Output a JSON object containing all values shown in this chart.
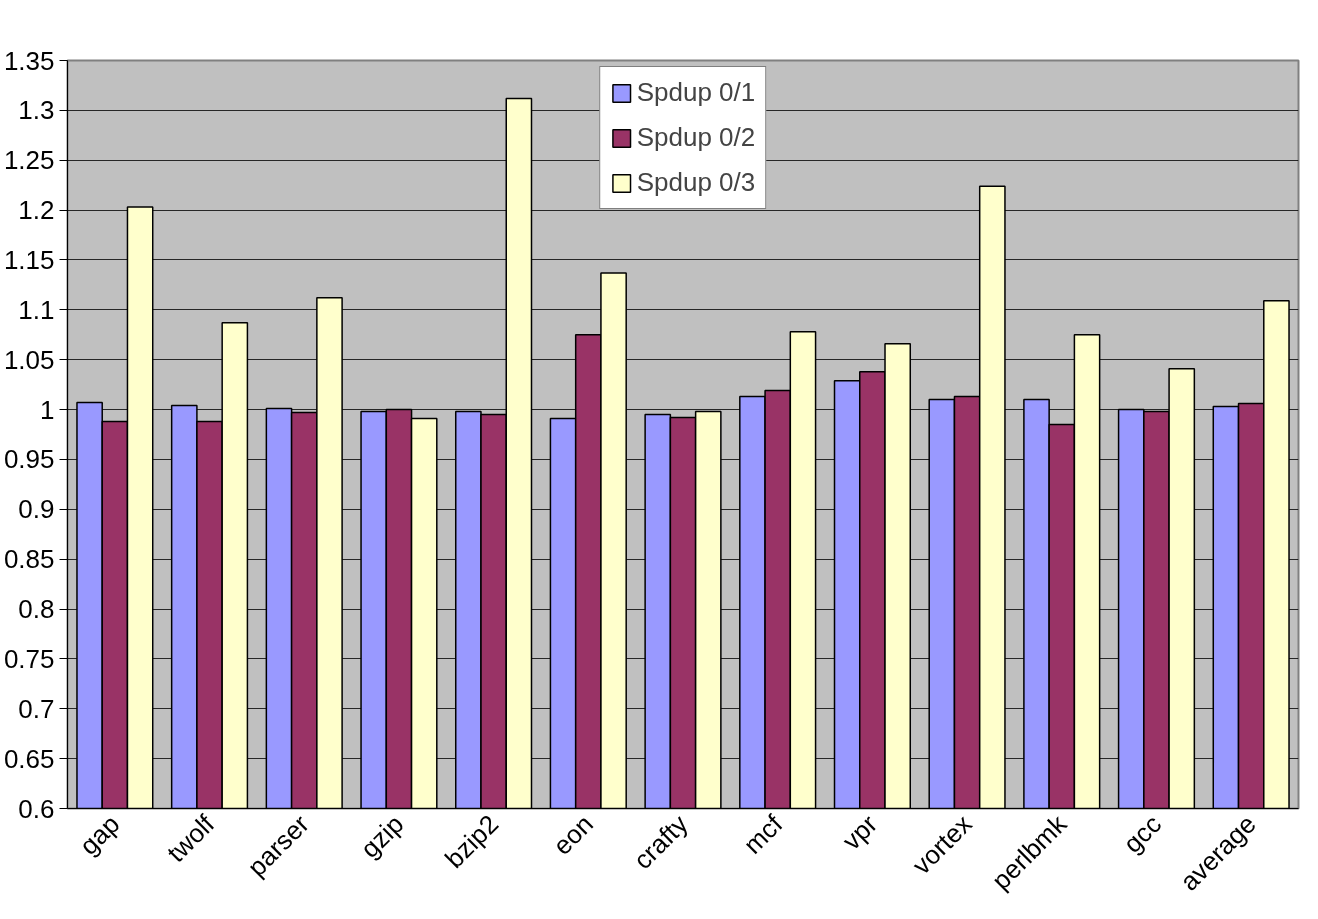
{
  "chart_data": {
    "type": "bar",
    "categories": [
      "gap",
      "twolf",
      "parser",
      "gzip",
      "bzip2",
      "eon",
      "crafty",
      "mcf",
      "vpr",
      "vortex",
      "perlbmk",
      "gcc",
      "average"
    ],
    "series": [
      {
        "name": "Spdup 0/1",
        "color": "#9999ff",
        "values": [
          1.007,
          1.004,
          1.001,
          0.998,
          0.998,
          0.991,
          0.995,
          1.013,
          1.029,
          1.01,
          1.01,
          1.0,
          1.003
        ]
      },
      {
        "name": "Spdup 0/2",
        "color": "#993366",
        "values": [
          0.988,
          0.988,
          0.997,
          1.0,
          0.995,
          1.075,
          0.992,
          1.019,
          1.038,
          1.013,
          0.985,
          0.998,
          1.006
        ]
      },
      {
        "name": "Spdup 0/3",
        "color": "#ffffcc",
        "values": [
          1.203,
          1.087,
          1.112,
          0.991,
          1.312,
          1.137,
          0.998,
          1.078,
          1.066,
          1.224,
          1.075,
          1.041,
          1.109
        ]
      }
    ],
    "ylim": [
      0.6,
      1.35
    ],
    "yticks": [
      0.6,
      0.65,
      0.7,
      0.75,
      0.8,
      0.85,
      0.9,
      0.95,
      1,
      1.05,
      1.1,
      1.15,
      1.2,
      1.25,
      1.3,
      1.35
    ],
    "grid": "y",
    "legend": "top"
  }
}
